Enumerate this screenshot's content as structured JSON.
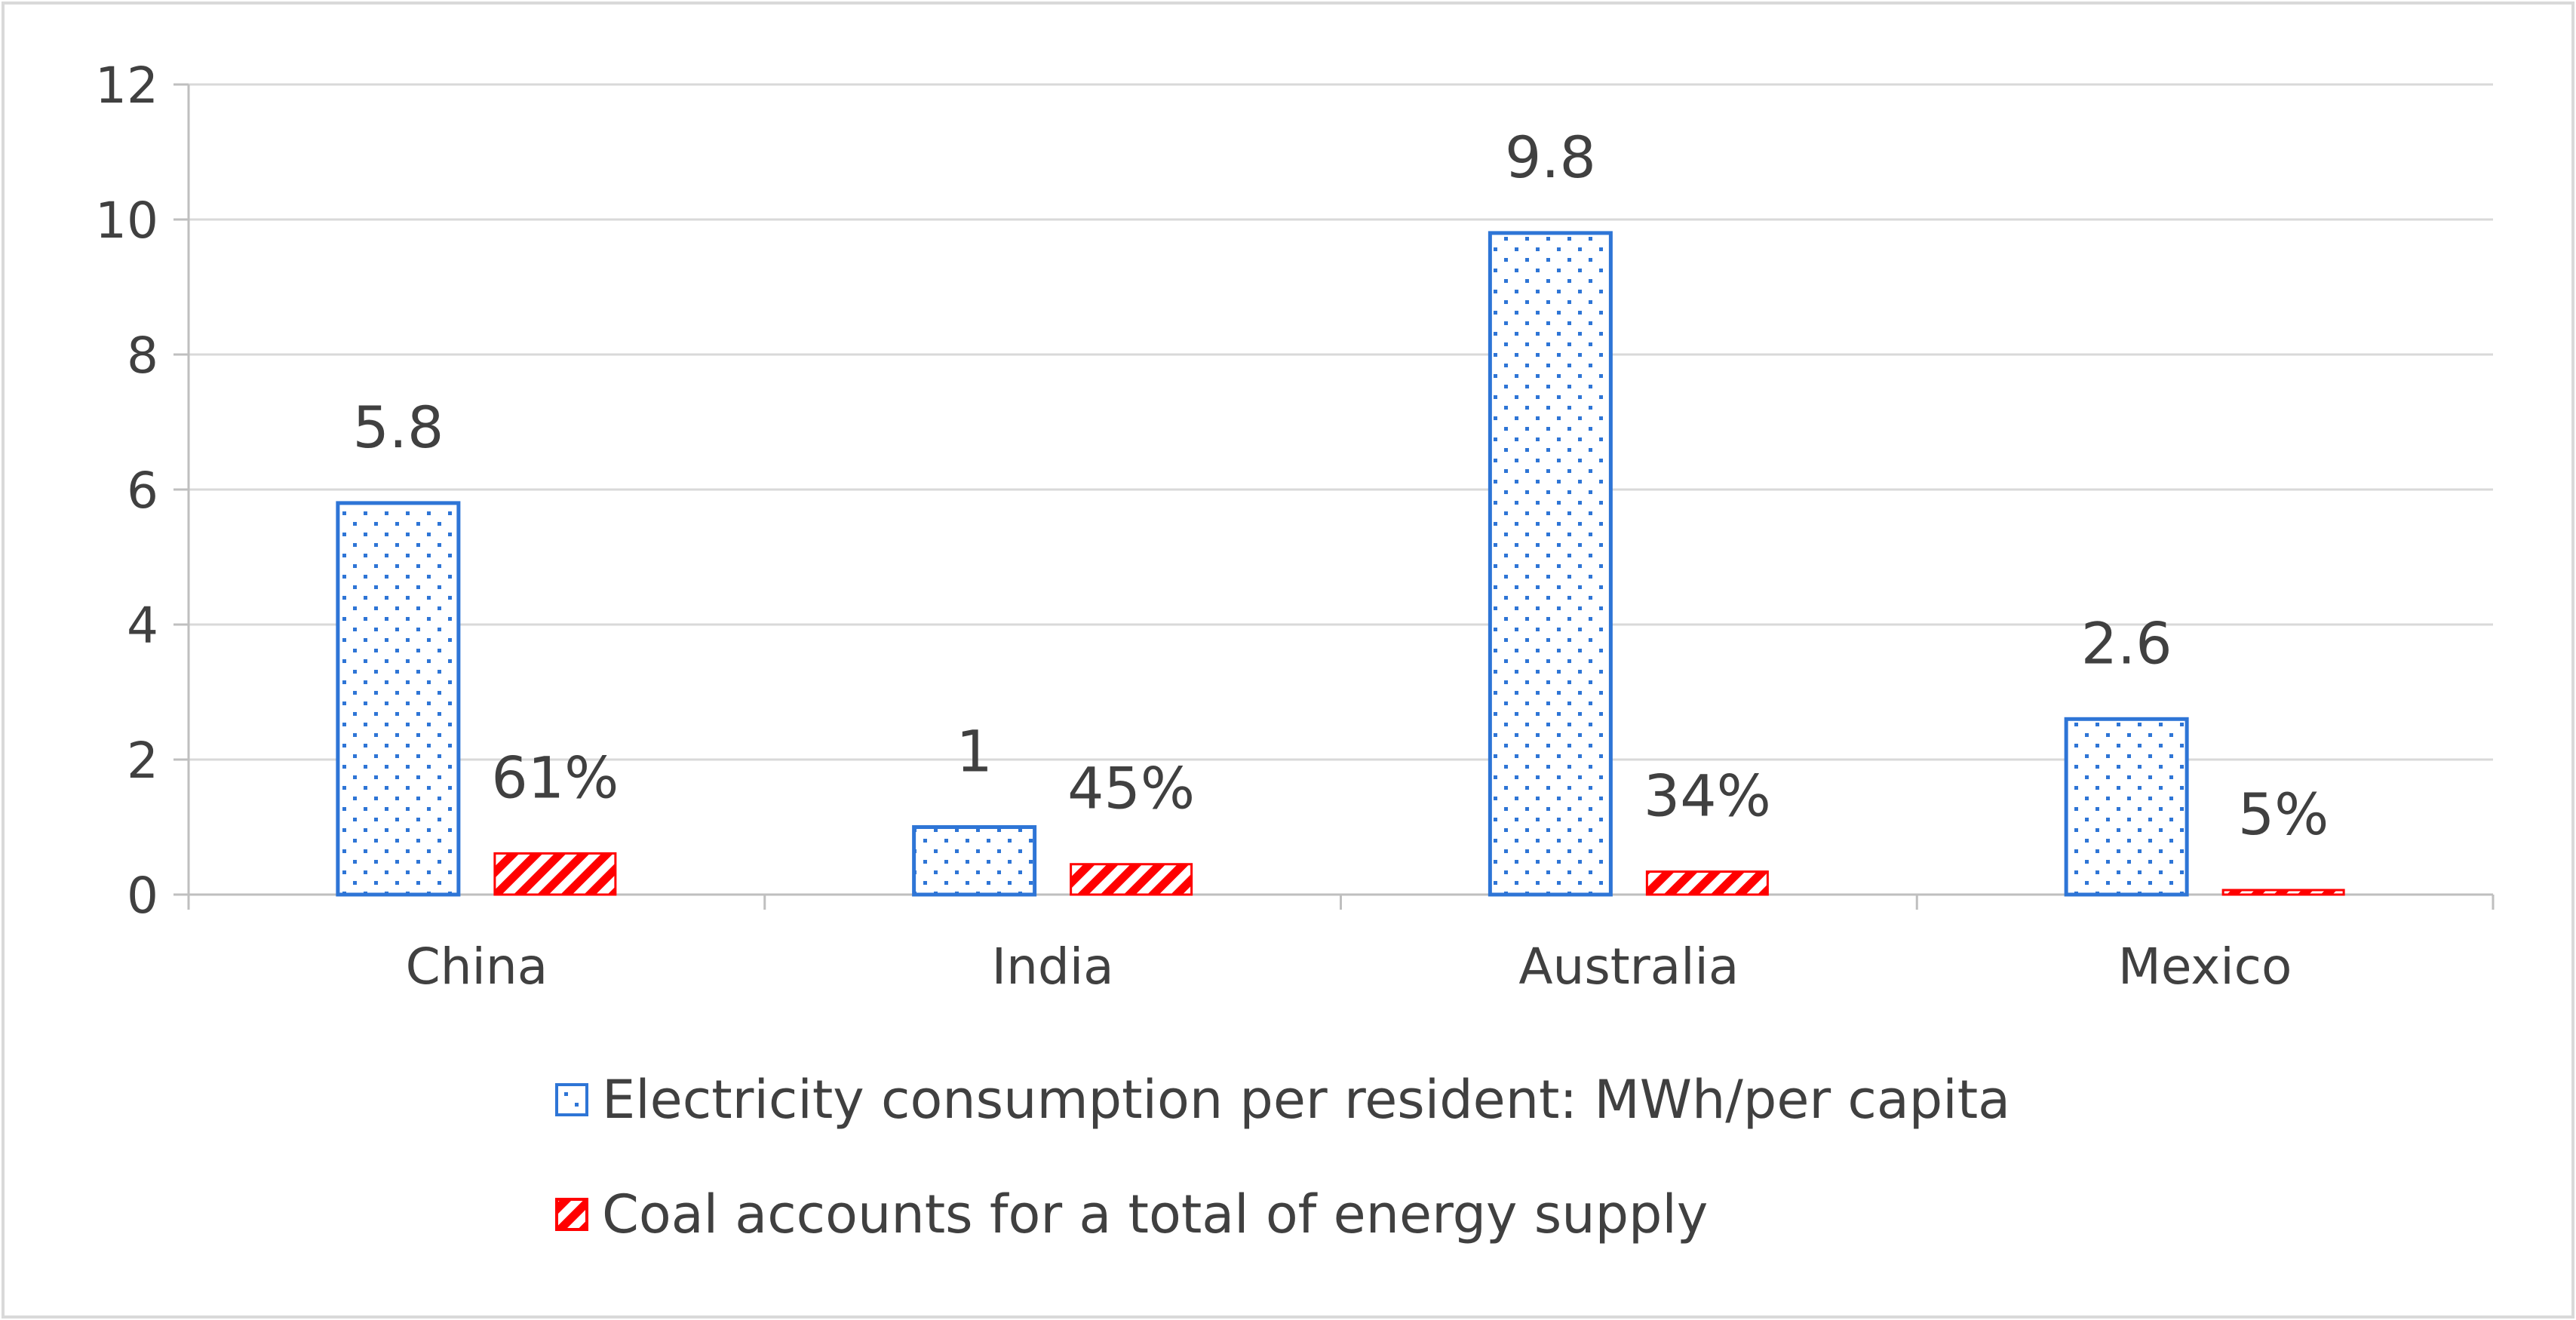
{
  "chart_data": {
    "type": "bar",
    "title": "",
    "xlabel": "",
    "ylabel": "",
    "categories": [
      "China",
      "India",
      "Australia",
      "Mexico"
    ],
    "ylim": [
      0,
      12
    ],
    "y_ticks": [
      "0",
      "2",
      "4",
      "6",
      "8",
      "10",
      "12"
    ],
    "grid": true,
    "legend_position": "bottom-center",
    "series": [
      {
        "name": "Electricity consumption per resident: MWh/per capita",
        "values": [
          5.8,
          1,
          9.8,
          2.6
        ],
        "labels": [
          "5.8",
          "1",
          "9.8",
          "2.6"
        ],
        "color": "#2E75D6",
        "pattern": "dots"
      },
      {
        "name": "Coal accounts for a total of energy supply",
        "values": [
          0.61,
          0.45,
          0.34,
          0.05
        ],
        "labels": [
          "61%",
          "45%",
          "34%",
          "5%"
        ],
        "color": "#FF0000",
        "pattern": "diagonal-hatch"
      }
    ]
  }
}
